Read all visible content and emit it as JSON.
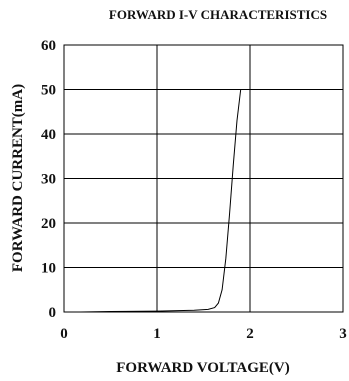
{
  "chart_data": {
    "type": "line",
    "title": "FORWARD I-V CHARACTERISTICS",
    "xlabel": "FORWARD VOLTAGE(V)",
    "ylabel": "FORWARD CURRENT(mA)",
    "xlim": [
      0,
      3
    ],
    "ylim": [
      0,
      60
    ],
    "xticks": [
      0,
      1,
      2,
      3
    ],
    "yticks": [
      0,
      10,
      20,
      30,
      40,
      50,
      60
    ],
    "grid": true,
    "series": [
      {
        "x": [
          0.18,
          0.5,
          1.0,
          1.4,
          1.55,
          1.62,
          1.66,
          1.7,
          1.74,
          1.78,
          1.82,
          1.86,
          1.9
        ],
        "y": [
          0.0,
          0.1,
          0.2,
          0.4,
          0.6,
          1.0,
          2.0,
          5.0,
          12.0,
          22.0,
          33.0,
          43.0,
          50.0
        ]
      }
    ]
  }
}
